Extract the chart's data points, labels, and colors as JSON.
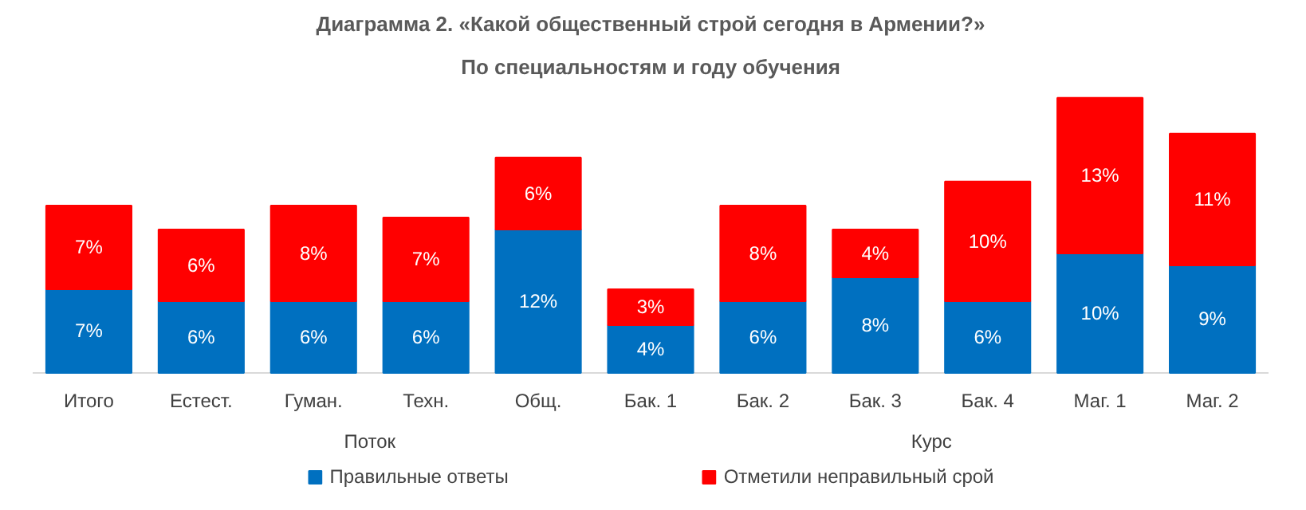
{
  "chart_data": {
    "type": "bar",
    "stacked": true,
    "data_labels": true,
    "legend": "bottom",
    "grid": false,
    "title": "Диаграмма 2. «Какой общественный строй сегодня в Армении?»",
    "subtitle": "По специальностям и году обучения",
    "categories": [
      "Итого",
      "Естест.",
      "Гуман.",
      "Техн.",
      "Общ.",
      "Бак. 1",
      "Бак. 2",
      "Бак. 3",
      "Бак. 4",
      "Маг. 1",
      "Маг. 2"
    ],
    "annotations": [
      "Поток",
      "Курс"
    ],
    "series": [
      {
        "name": "Правильные ответы",
        "color": "#0070c0",
        "values": [
          7,
          6,
          6,
          6,
          12,
          4,
          6,
          8,
          6,
          10,
          9
        ],
        "value_labels": [
          "7%",
          "6%",
          "6%",
          "6%",
          "12%",
          "4%",
          "6%",
          "8%",
          "6%",
          "10%",
          "9%"
        ]
      },
      {
        "name": "Отметили неправильный срой",
        "color": "#ff0000",
        "values": [
          7,
          6,
          8,
          7,
          6,
          3,
          8,
          4,
          10,
          13,
          11
        ],
        "value_labels": [
          "7%",
          "6%",
          "8%",
          "7%",
          "6%",
          "3%",
          "8%",
          "4%",
          "10%",
          "13%",
          "11%"
        ]
      }
    ]
  }
}
